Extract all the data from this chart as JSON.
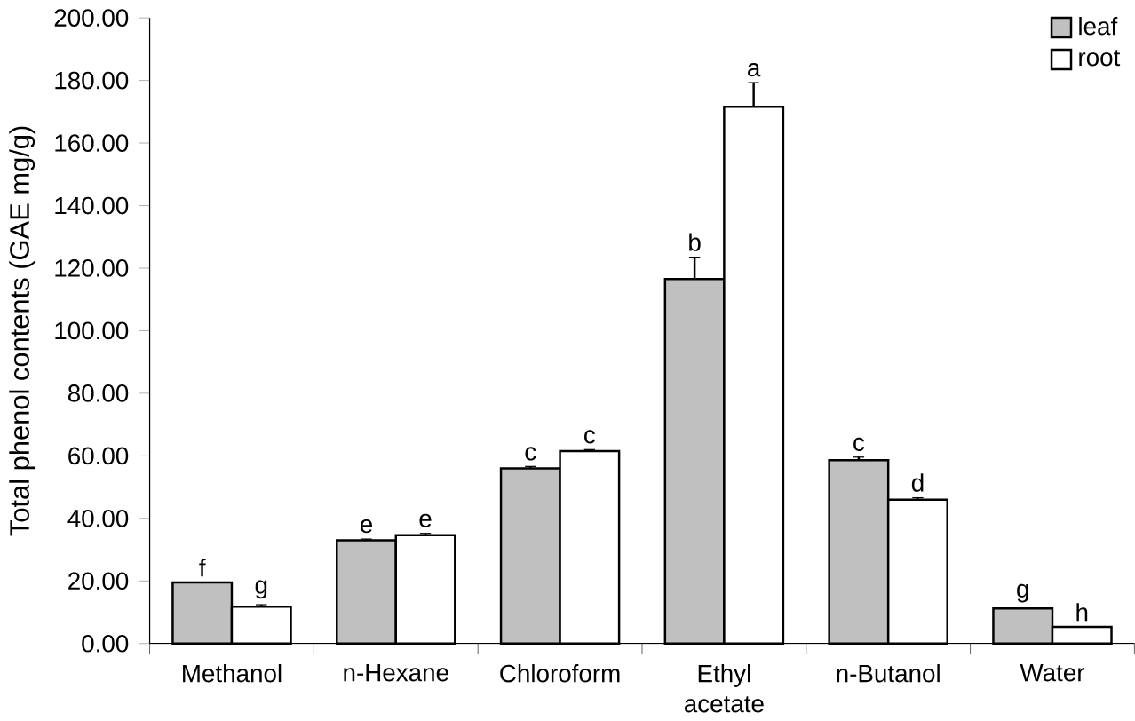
{
  "chart_data": {
    "type": "bar",
    "ylabel": "Total phenol contents (GAE mg/g)",
    "categories": [
      "Methanol",
      "n-Hexane",
      "Chloroform",
      "Ethyl acetate",
      "n-Butanol",
      "Water"
    ],
    "series": [
      {
        "name": "leaf",
        "color": "#c0c0c0",
        "values": [
          19.5,
          33,
          56,
          116.5,
          58.6,
          11.2
        ],
        "errors": [
          null,
          0.4,
          0.6,
          7,
          1,
          null
        ],
        "value_labels": [
          "f",
          "e",
          "c",
          "b",
          "c",
          "g"
        ]
      },
      {
        "name": "root",
        "color": "#ffffff",
        "values": [
          11.8,
          34.6,
          61.5,
          171.6,
          46,
          5.3
        ],
        "errors": [
          0.6,
          0.6,
          0.5,
          7.7,
          0.6,
          null
        ],
        "value_labels": [
          "g",
          "e",
          "c",
          "a",
          "d",
          "h"
        ]
      }
    ],
    "ylim": [
      0,
      200
    ],
    "yticks": [
      {
        "value": 0,
        "label": "0.00"
      },
      {
        "value": 20,
        "label": "20.00"
      },
      {
        "value": 40,
        "label": "40.00"
      },
      {
        "value": 60,
        "label": "60.00"
      },
      {
        "value": 80,
        "label": "80.00"
      },
      {
        "value": 100,
        "label": "100.00"
      },
      {
        "value": 120,
        "label": "120.00"
      },
      {
        "value": 140,
        "label": "140.00"
      },
      {
        "value": 160,
        "label": "160.00"
      },
      {
        "value": 180,
        "label": "180.00"
      },
      {
        "value": 200,
        "label": "200.00"
      }
    ],
    "grid": false,
    "legend": "top right"
  }
}
